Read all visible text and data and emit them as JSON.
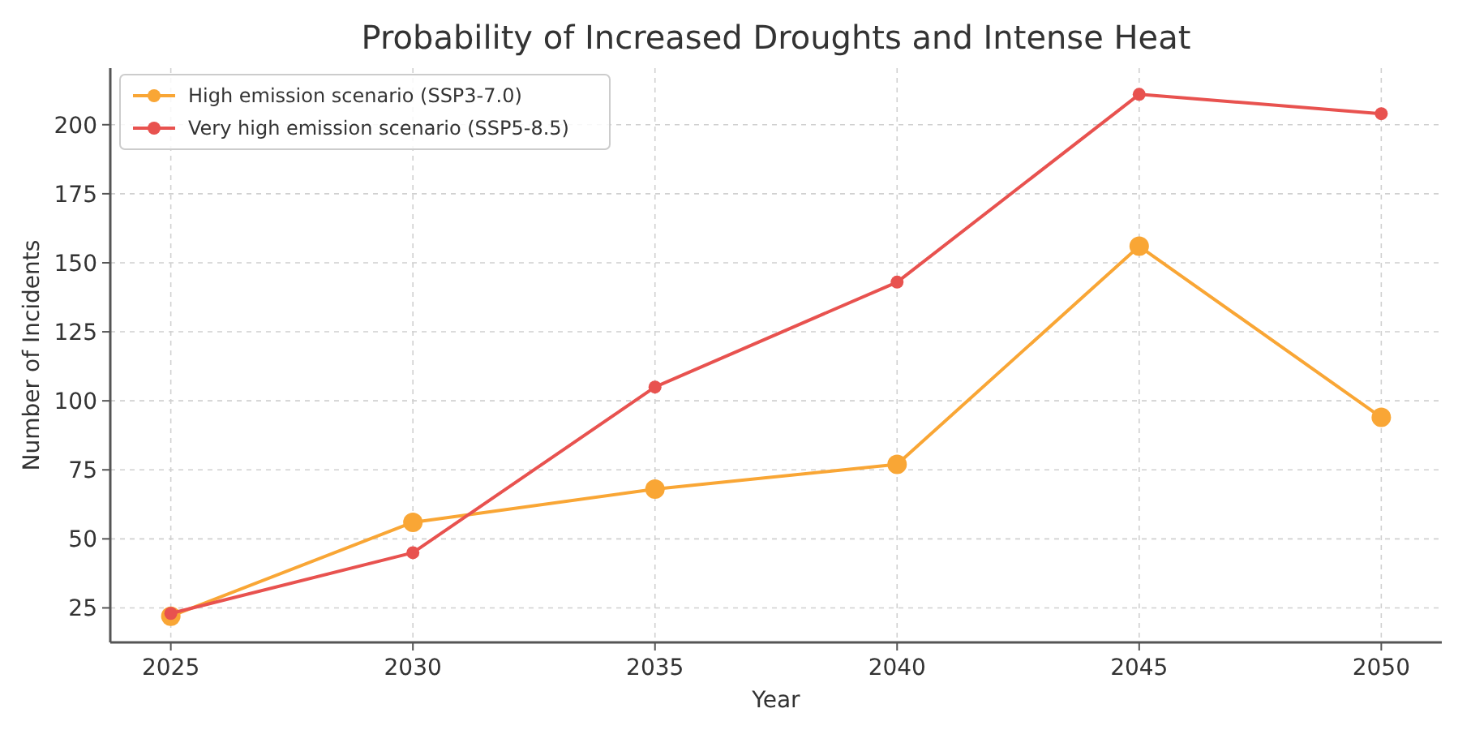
{
  "chart_data": {
    "type": "line",
    "title": "Probability of Increased Droughts and Intense Heat",
    "xlabel": "Year",
    "ylabel": "Number of Incidents",
    "x": [
      2025,
      2030,
      2035,
      2040,
      2045,
      2050
    ],
    "series": [
      {
        "name": "High emission scenario (SSP3-7.0)",
        "color": "#f9a635",
        "values": [
          22,
          56,
          68,
          77,
          156,
          94
        ]
      },
      {
        "name": "Very high emission scenario (SSP5-8.5)",
        "color": "#e8524f",
        "values": [
          23,
          45,
          105,
          143,
          211,
          204
        ]
      }
    ],
    "xlim": [
      2023.75,
      2051.25
    ],
    "xticks": [
      2025,
      2030,
      2035,
      2040,
      2045,
      2050
    ],
    "ylim": [
      12.5,
      220.5
    ],
    "yticks": [
      25,
      50,
      75,
      100,
      125,
      150,
      175,
      200
    ],
    "grid": true,
    "legend": "top left",
    "marker": "circle",
    "line_style": "solid"
  }
}
